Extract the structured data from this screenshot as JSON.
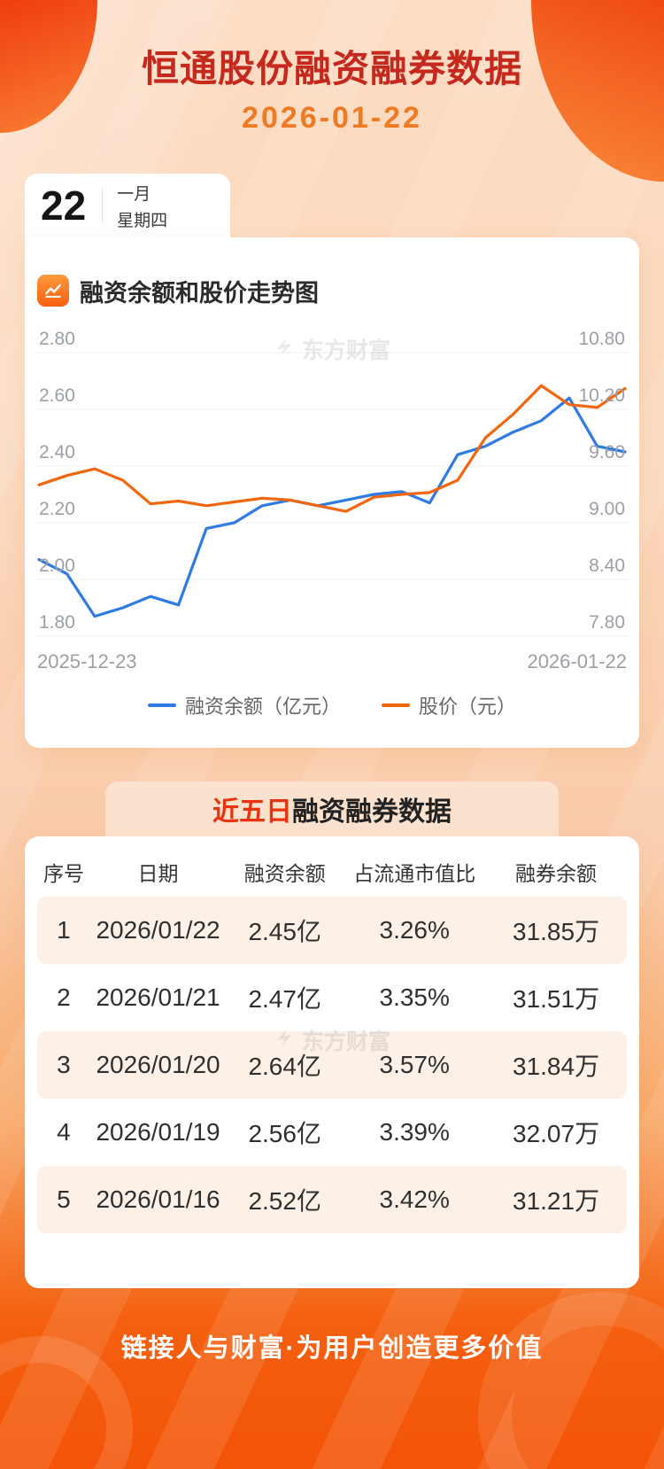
{
  "header": {
    "title": "恒通股份融资融券数据",
    "date": "2026-01-22"
  },
  "calendar": {
    "day": "22",
    "month": "一月",
    "weekday": "星期四"
  },
  "chart_section": {
    "title": "融资余额和股价走势图",
    "watermark": "东方财富",
    "x_start": "2025-12-23",
    "x_end": "2026-01-22",
    "legend": [
      {
        "label": "融资余额（亿元）",
        "color": "#2e7be4"
      },
      {
        "label": "股价（元）",
        "color": "#f2660d"
      }
    ]
  },
  "table_section": {
    "title_highlight": "近五日",
    "title_rest": "融资融券数据",
    "watermark": "东方财富",
    "columns": [
      "序号",
      "日期",
      "融资余额",
      "占流通市值比",
      "融券余额"
    ],
    "rows": [
      [
        "1",
        "2026/01/22",
        "2.45亿",
        "3.26%",
        "31.85万"
      ],
      [
        "2",
        "2026/01/21",
        "2.47亿",
        "3.35%",
        "31.51万"
      ],
      [
        "3",
        "2026/01/20",
        "2.64亿",
        "3.57%",
        "31.84万"
      ],
      [
        "4",
        "2026/01/19",
        "2.56亿",
        "3.39%",
        "32.07万"
      ],
      [
        "5",
        "2026/01/16",
        "2.52亿",
        "3.42%",
        "31.21万"
      ]
    ]
  },
  "footer": {
    "slogan": "链接人与财富·为用户创造更多价值"
  },
  "colors": {
    "title_red": "#c5281c",
    "date_orange": "#ee7b23",
    "line_blue": "#2e7be4",
    "line_orange": "#f2660d",
    "stripe_peach": "#fdf1e7",
    "badge_peach": "#fbe2ce",
    "footer_orange": "#f4580a"
  },
  "chart_data": [
    {
      "type": "line",
      "title": "融资余额和股价走势图",
      "x_visible_labels": [
        "2025-12-23",
        "2026-01-22"
      ],
      "grid": true,
      "legend_position": "bottom",
      "left_axis": {
        "name": "融资余额（亿元）",
        "min": 1.8,
        "max": 2.8,
        "tick_labels": [
          "2.80",
          "2.60",
          "2.40",
          "2.20",
          "2.00",
          "1.80"
        ]
      },
      "right_axis": {
        "name": "股价（元）",
        "min": 7.8,
        "max": 10.8,
        "tick_labels": [
          "10.80",
          "10.20",
          "9.60",
          "9.00",
          "8.40",
          "7.80"
        ]
      },
      "series": [
        {
          "name": "融资余额（亿元）",
          "axis": "left",
          "color": "#2e7be4",
          "values": [
            2.07,
            2.02,
            1.87,
            1.9,
            1.94,
            1.91,
            2.18,
            2.2,
            2.26,
            2.28,
            2.26,
            2.28,
            2.3,
            2.31,
            2.27,
            2.44,
            2.47,
            2.52,
            2.56,
            2.64,
            2.47,
            2.45
          ]
        },
        {
          "name": "股价（元）",
          "axis": "right",
          "color": "#f2660d",
          "values": [
            9.4,
            9.5,
            9.57,
            9.45,
            9.2,
            9.23,
            9.18,
            9.22,
            9.26,
            9.24,
            9.18,
            9.12,
            9.27,
            9.3,
            9.32,
            9.45,
            9.9,
            10.15,
            10.45,
            10.25,
            10.22,
            10.42
          ]
        }
      ]
    },
    {
      "type": "table",
      "title": "近五日融资融券数据",
      "columns": [
        "序号",
        "日期",
        "融资余额",
        "占流通市值比",
        "融券余额"
      ],
      "rows": [
        [
          "1",
          "2026/01/22",
          "2.45亿",
          "3.26%",
          "31.85万"
        ],
        [
          "2",
          "2026/01/21",
          "2.47亿",
          "3.35%",
          "31.51万"
        ],
        [
          "3",
          "2026/01/20",
          "2.64亿",
          "3.57%",
          "31.84万"
        ],
        [
          "4",
          "2026/01/19",
          "2.56亿",
          "3.39%",
          "32.07万"
        ],
        [
          "5",
          "2026/01/16",
          "2.52亿",
          "3.42%",
          "31.21万"
        ]
      ]
    }
  ]
}
